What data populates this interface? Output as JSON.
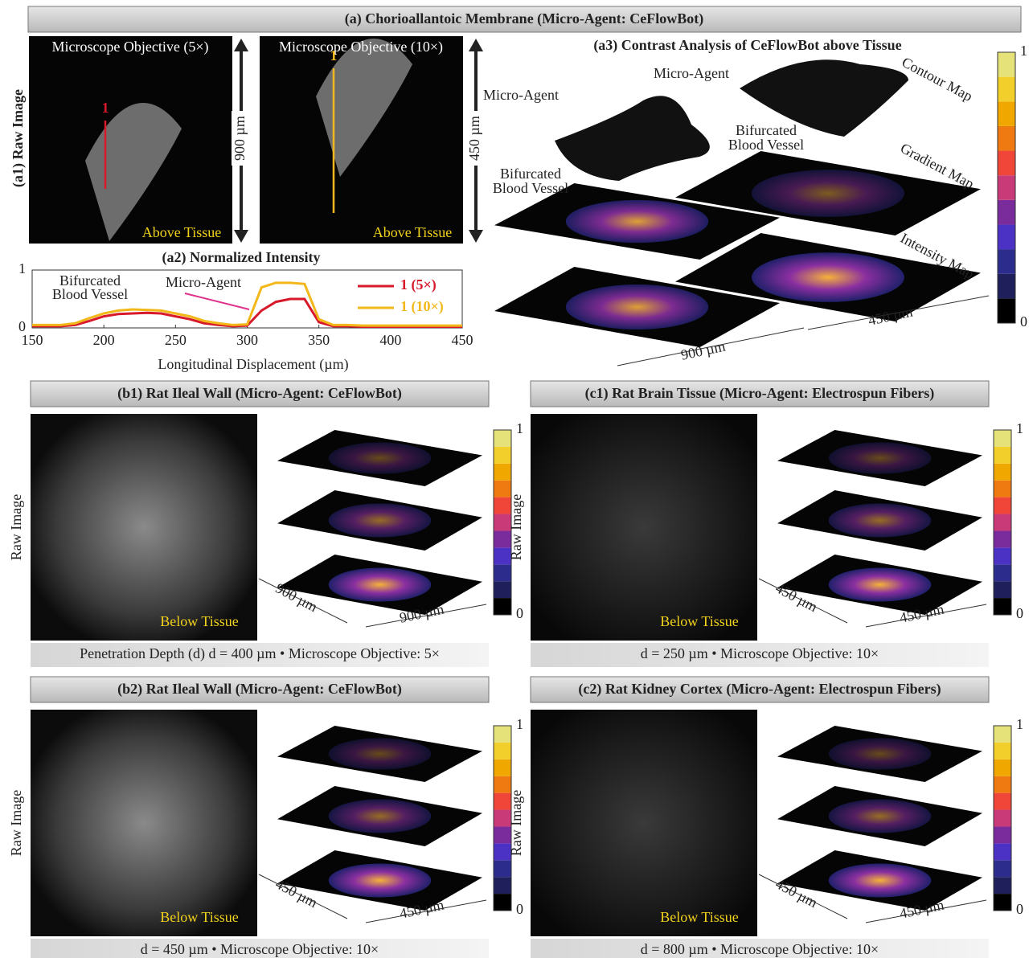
{
  "header": "(a) Chorioallantoic Membrane (Micro-Agent: CeFlowBot)",
  "a1": {
    "label": "(a1) Raw Image",
    "left_title": "Microscope Objective (5×)",
    "right_title": "Microscope Objective (10×)",
    "left_marker": "1",
    "right_marker": "1",
    "left_caption": "Above Tissue",
    "right_caption": "Above Tissue",
    "scale_left": "900 µm",
    "scale_right": "450 µm"
  },
  "chart_data": {
    "type": "line",
    "title": "(a2) Normalized Intensity",
    "x": [
      150,
      160,
      170,
      180,
      190,
      200,
      210,
      220,
      230,
      240,
      250,
      260,
      270,
      280,
      290,
      300,
      310,
      320,
      330,
      340,
      350,
      360,
      370,
      380,
      390,
      400,
      410,
      420,
      430,
      440,
      450
    ],
    "series": [
      {
        "name": "1 (5×)",
        "color": "#d7192a",
        "values": [
          0.03,
          0.03,
          0.03,
          0.05,
          0.12,
          0.2,
          0.24,
          0.25,
          0.26,
          0.25,
          0.2,
          0.15,
          0.08,
          0.05,
          0.03,
          0.04,
          0.3,
          0.45,
          0.5,
          0.5,
          0.1,
          0.03,
          0.03,
          0.02,
          0.02,
          0.02,
          0.02,
          0.02,
          0.02,
          0.02,
          0.02
        ]
      },
      {
        "name": "1 (10×)",
        "color": "#f2b81a",
        "values": [
          0.05,
          0.05,
          0.05,
          0.08,
          0.17,
          0.25,
          0.3,
          0.32,
          0.31,
          0.3,
          0.25,
          0.2,
          0.12,
          0.08,
          0.05,
          0.06,
          0.7,
          0.78,
          0.78,
          0.76,
          0.15,
          0.05,
          0.05,
          0.04,
          0.04,
          0.04,
          0.04,
          0.04,
          0.04,
          0.04,
          0.04
        ]
      }
    ],
    "xlim": [
      150,
      450
    ],
    "ylim": [
      0,
      1
    ],
    "xticks": [
      150,
      200,
      250,
      300,
      350,
      400,
      450
    ],
    "yticks": [
      0,
      1
    ],
    "xlabel": "Longitudinal Displacement (µm)",
    "annotations": [
      [
        "Bifurcated",
        "Blood Vessel"
      ],
      [
        "Micro-Agent"
      ]
    ]
  },
  "a3": {
    "title": "(a3) Contrast Analysis of CeFlowBot above Tissue",
    "agent_left": "Micro-Agent",
    "agent_right": "Micro-Agent",
    "vessel_left": [
      "Bifurcated",
      "Blood Vessel"
    ],
    "vessel_right": [
      "Bifurcated",
      "Blood Vessel"
    ],
    "maps": [
      "Contour Map",
      "Gradient Map",
      "Intensity Map"
    ],
    "scale_left": "900 µm",
    "scale_right": "450 µm",
    "colorbar_ticks": [
      1,
      0
    ]
  },
  "panels": [
    {
      "title": "(b1) Rat Ileal Wall (Micro-Agent: CeFlowBot)",
      "side_label": "Raw Image",
      "image_caption": "Below Tissue",
      "scale_depth": "900 µm",
      "scale_width": "900 µm",
      "caption": "Penetration Depth (d) d = 400 µm • Microscope Objective: 5×",
      "colorbar_ticks": [
        1,
        0
      ]
    },
    {
      "title": "(c1) Rat Brain Tissue (Micro-Agent: Electrospun Fibers)",
      "side_label": "Raw Image",
      "image_caption": "Below Tissue",
      "scale_depth": "450 µm",
      "scale_width": "450 µm",
      "caption": "d = 250 µm • Microscope Objective: 10×",
      "colorbar_ticks": [
        1,
        0
      ]
    },
    {
      "title": "(b2) Rat Ileal Wall (Micro-Agent: CeFlowBot)",
      "side_label": "Raw Image",
      "image_caption": "Below Tissue",
      "scale_depth": "450 µm",
      "scale_width": "450 µm",
      "caption": "d = 450 µm • Microscope Objective: 10×",
      "colorbar_ticks": [
        1,
        0
      ]
    },
    {
      "title": "(c2) Rat Kidney Cortex (Micro-Agent: Electrospun Fibers)",
      "side_label": "Raw Image",
      "image_caption": "Below Tissue",
      "scale_depth": "450 µm",
      "scale_width": "450 µm",
      "caption": "d = 800 µm • Microscope Objective: 10×",
      "colorbar_ticks": [
        1,
        0
      ]
    }
  ]
}
